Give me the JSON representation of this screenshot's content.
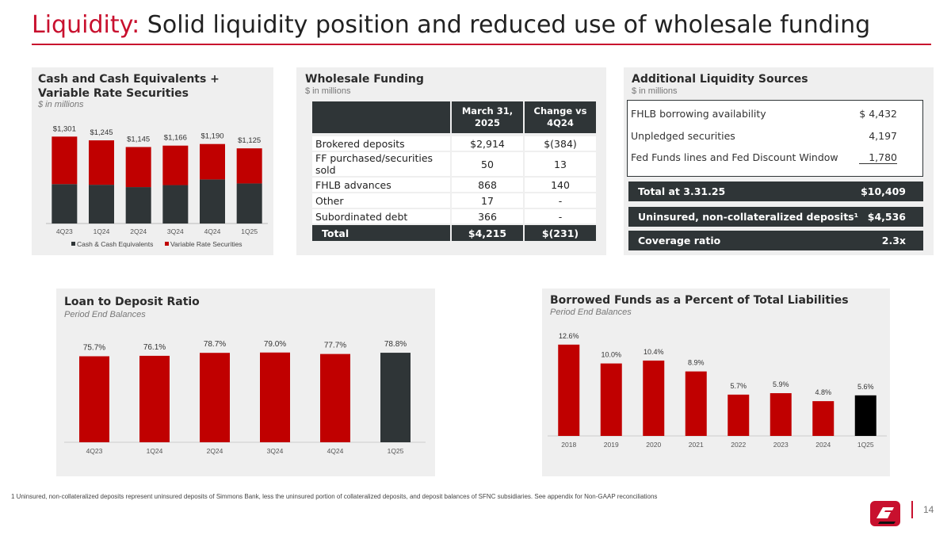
{
  "title": {
    "accent": "Liquidity:",
    "rest": " Solid liquidity position and reduced use of wholesale funding"
  },
  "cash_panel": {
    "title_line1": "Cash and Cash Equivalents +",
    "title_line2": "Variable Rate Securities",
    "subtitle": "$ in millions"
  },
  "wholesale": {
    "title": "Wholesale Funding",
    "subtitle": "$ in millions",
    "col1_line1": "March 31,",
    "col1_line2": "2025",
    "col2_line1": "Change vs",
    "col2_line2": "4Q24",
    "rows": [
      {
        "label": "Brokered deposits",
        "value": "$2,914",
        "change": "$(384)"
      },
      {
        "label": "FF purchased/securities sold",
        "value": "50",
        "change": "13"
      },
      {
        "label": "FHLB advances",
        "value": "868",
        "change": "140"
      },
      {
        "label": "Other",
        "value": "17",
        "change": "-"
      },
      {
        "label": "Subordinated debt",
        "value": "366",
        "change": "-"
      }
    ],
    "total": {
      "label": "Total",
      "value": "$4,215",
      "change": "$(231)"
    }
  },
  "additional": {
    "title": "Additional Liquidity Sources",
    "subtitle": "$ in millions",
    "rows": [
      {
        "label": "FHLB borrowing availability",
        "value": "$  4,432"
      },
      {
        "label": "Unpledged securities",
        "value": "4,197"
      },
      {
        "label": "Fed Funds lines and Fed Discount Window",
        "value": "1,780"
      }
    ],
    "total": {
      "label": "Total at 3.31.25",
      "value": "$10,409"
    },
    "uninsured": {
      "label": "Uninsured, non-collateralized deposits¹",
      "value": "$4,536"
    },
    "coverage": {
      "label": "Coverage ratio",
      "value": "2.3x"
    }
  },
  "ltd_panel": {
    "title": "Loan to Deposit Ratio",
    "subtitle": "Period End Balances"
  },
  "borrowed_panel": {
    "title": "Borrowed Funds as a Percent of Total Liabilities",
    "subtitle": "Period End Balances"
  },
  "footnote": "1   Uninsured, non-collateralized deposits represent uninsured deposits of Simmons Bank, less the uninsured portion of collateralized deposits, and deposit balances of SFNC subsidiaries. See appendix for Non-GAAP reconciliations",
  "page_number": "14",
  "colors": {
    "red": "#c00000",
    "dark": "#2f3537",
    "accent": "#c8102e"
  },
  "chart_data": [
    {
      "id": "cash",
      "type": "bar",
      "stacked": true,
      "categories": [
        "4Q23",
        "1Q24",
        "2Q24",
        "3Q24",
        "4Q24",
        "1Q25"
      ],
      "totals": [
        "$1,301",
        "$1,245",
        "$1,145",
        "$1,166",
        "$1,190",
        "$1,125"
      ],
      "total_values": [
        1301,
        1245,
        1145,
        1166,
        1190,
        1125
      ],
      "series": [
        {
          "name": "Cash & Cash Equivalents",
          "color": "#2f3537",
          "values": [
            590,
            580,
            545,
            575,
            660,
            600
          ]
        },
        {
          "name": "Variable Rate Securities",
          "color": "#c00000",
          "values": [
            711,
            665,
            600,
            591,
            530,
            525
          ]
        }
      ],
      "ylim": [
        0,
        1400
      ],
      "legend": "bottom"
    },
    {
      "id": "ltd",
      "type": "bar",
      "categories": [
        "4Q23",
        "1Q24",
        "2Q24",
        "3Q24",
        "4Q24",
        "1Q25"
      ],
      "values": [
        75.7,
        76.1,
        78.7,
        79.0,
        77.7,
        78.8
      ],
      "labels": [
        "75.7%",
        "76.1%",
        "78.7%",
        "79.0%",
        "77.7%",
        "78.8%"
      ],
      "colors": [
        "#c00000",
        "#c00000",
        "#c00000",
        "#c00000",
        "#c00000",
        "#2f3537"
      ],
      "ylim": [
        0,
        90
      ]
    },
    {
      "id": "borrowed",
      "type": "bar",
      "categories": [
        "2018",
        "2019",
        "2020",
        "2021",
        "2022",
        "2023",
        "2024",
        "1Q25"
      ],
      "values": [
        12.6,
        10.0,
        10.4,
        8.9,
        5.7,
        5.9,
        4.8,
        5.6
      ],
      "labels": [
        "12.6%",
        "10.0%",
        "10.4%",
        "8.9%",
        "5.7%",
        "5.9%",
        "4.8%",
        "5.6%"
      ],
      "colors": [
        "#c00000",
        "#c00000",
        "#c00000",
        "#c00000",
        "#c00000",
        "#c00000",
        "#c00000",
        "#000000"
      ],
      "ylim": [
        0,
        14
      ]
    }
  ]
}
